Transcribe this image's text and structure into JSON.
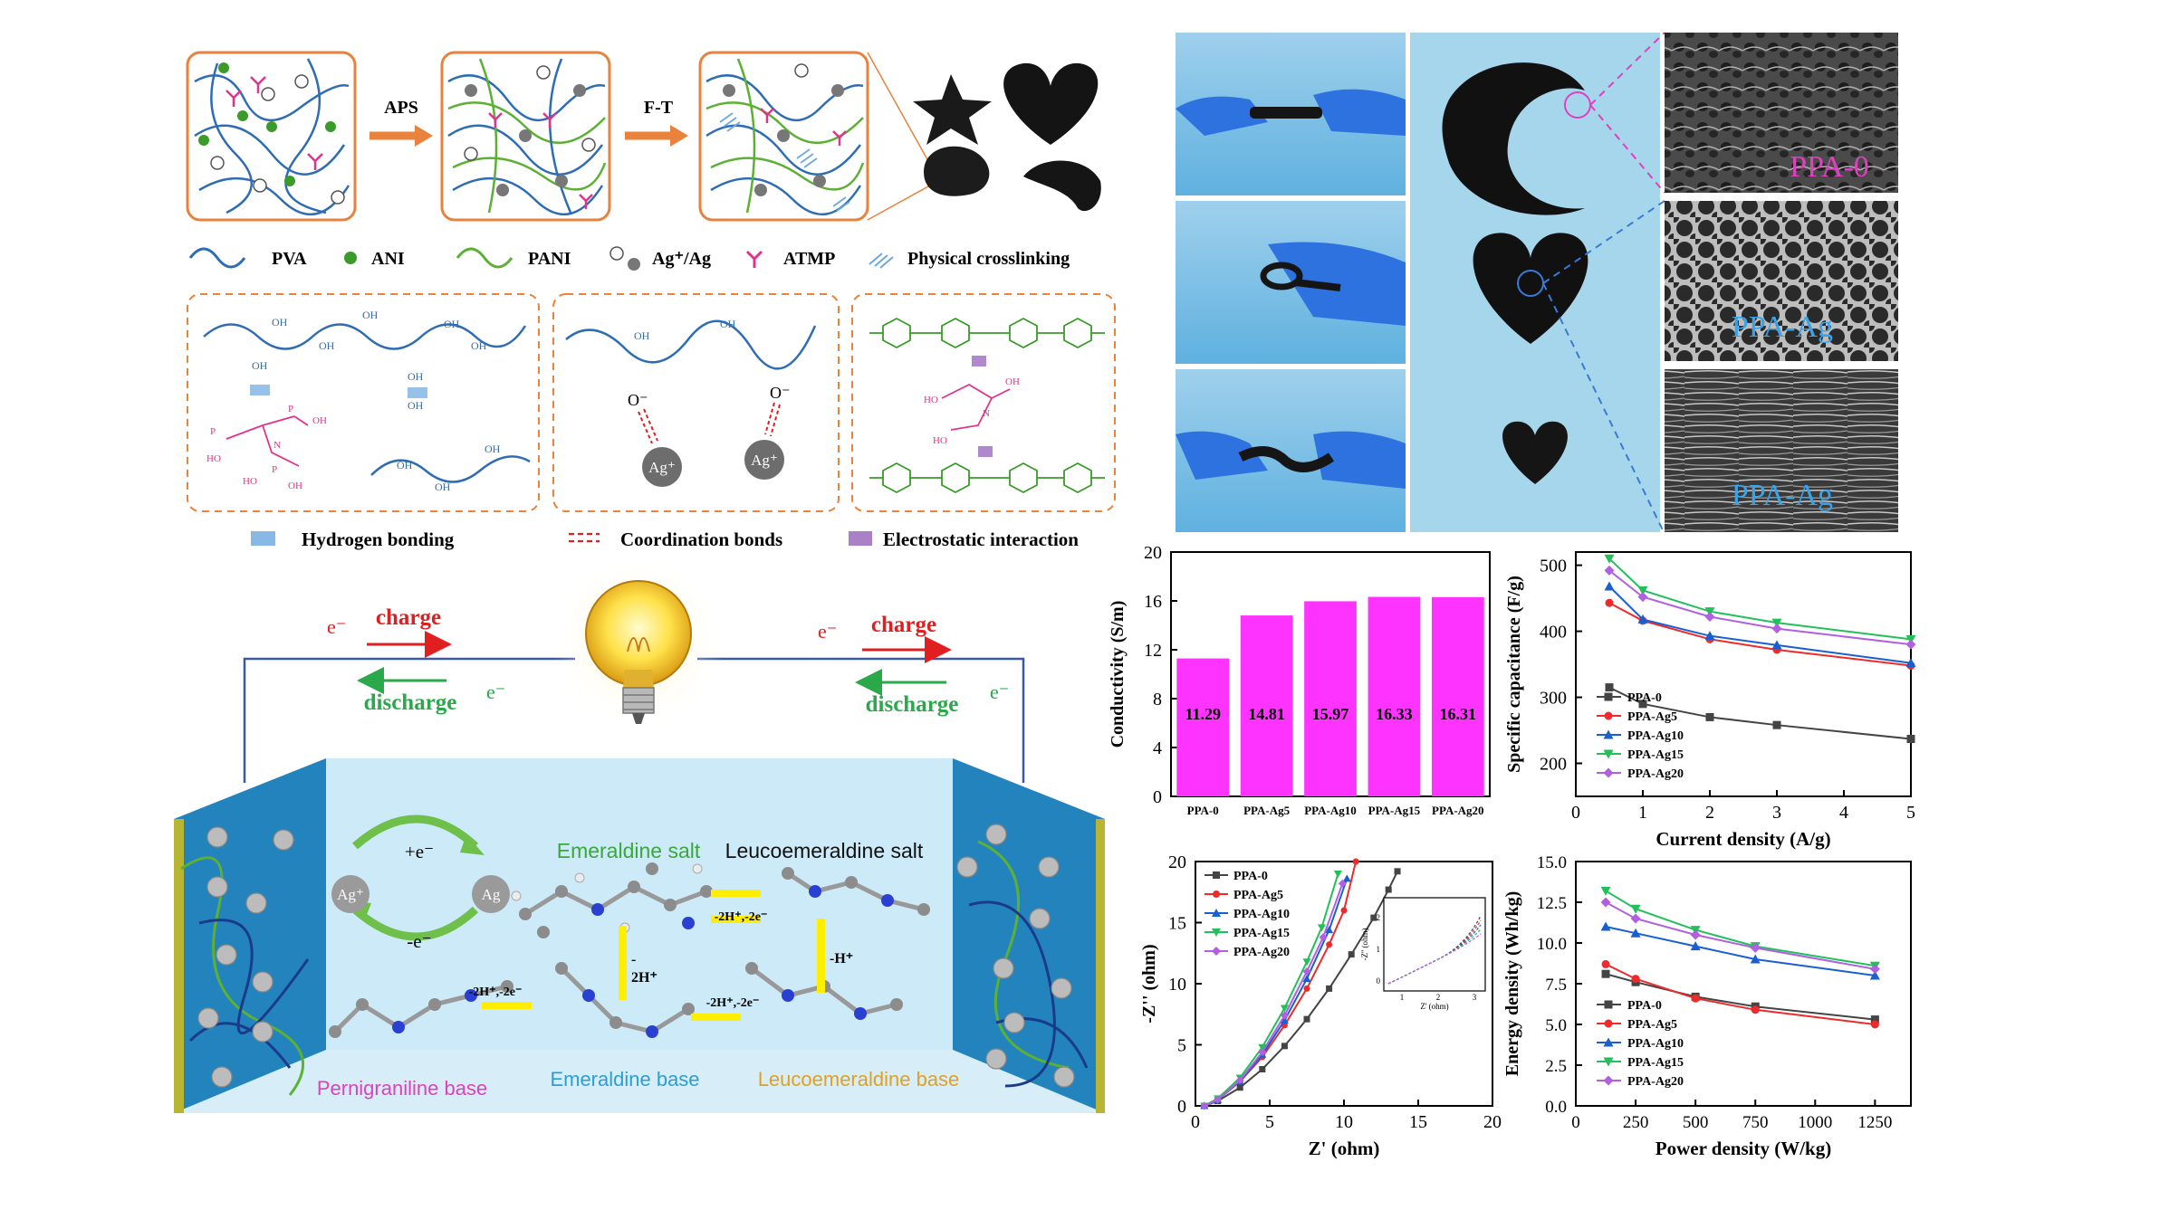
{
  "top_steps": {
    "aps": "APS",
    "ft": "F-T"
  },
  "legend1": {
    "pva": "PVA",
    "ani": "ANI",
    "pani": "PANI",
    "ag": "Ag⁺/Ag",
    "atmp": "ATMP",
    "phys": "Physical crosslinking"
  },
  "legend2": {
    "hbond": "Hydrogen bonding",
    "coord": "Coordination bonds",
    "electro": "Electrostatic interaction"
  },
  "mechanism": {
    "oh": "OH",
    "ominus": "O⁻",
    "ag_ion": "Ag⁺",
    "o_eq": "O",
    "p": "P",
    "n": "N",
    "ho": "HO"
  },
  "battery": {
    "e": "e⁻",
    "charge": "charge",
    "discharge": "discharge",
    "plus_e": "+e⁻",
    "minus_e": "-e⁻",
    "ag_plus": "Ag⁺",
    "ag": "Ag",
    "emeraldine_salt": "Emeraldine salt",
    "leucoemeraldine_salt": "Leucoemeraldine salt",
    "pernigraniline_base": "Pernigraniline base",
    "emeraldine_base": "Emeraldine base",
    "leucoemeraldine_base": "Leucoemeraldine base",
    "step1": "-2H⁺,-2e⁻",
    "step2": "-2H⁺,-2e⁻",
    "step3": "-2H⁺,-2e⁻",
    "step_2h": "2H⁺",
    "step_dash": "-",
    "step_h": "-H⁺"
  },
  "sem_labels": [
    "PPA-0",
    "PPA-Ag",
    "PPA-Ag"
  ],
  "colors": {
    "pva": "#2e6db4",
    "pani": "#5cb033",
    "ani": "#3a9a2a",
    "ag": "#777777",
    "atmp": "#e0348a",
    "orange": "#e8823c",
    "bar": "#ff33ff"
  },
  "chart_data": [
    {
      "type": "bar",
      "categories": [
        "PPA-0",
        "PPA-Ag5",
        "PPA-Ag10",
        "PPA-Ag15",
        "PPA-Ag20"
      ],
      "values": [
        11.29,
        14.81,
        15.97,
        16.33,
        16.31
      ],
      "value_labels": [
        "11.29",
        "14.81",
        "15.97",
        "16.33",
        "16.31"
      ],
      "xlabel": "",
      "ylabel": "Conductivity (S/m)",
      "ylim": [
        0,
        20
      ],
      "yticks": [
        "0",
        "4",
        "8",
        "12",
        "16",
        "20"
      ]
    },
    {
      "type": "line",
      "x": [
        0.5,
        1,
        2,
        3,
        5
      ],
      "series": [
        {
          "name": "PPA-0",
          "values": [
            315,
            290,
            270,
            258,
            237
          ]
        },
        {
          "name": "PPA-Ag5",
          "values": [
            443,
            416,
            388,
            372,
            348
          ]
        },
        {
          "name": "PPA-Ag10",
          "values": [
            468,
            418,
            393,
            379,
            352
          ]
        },
        {
          "name": "PPA-Ag15",
          "values": [
            510,
            462,
            430,
            413,
            388
          ]
        },
        {
          "name": "PPA-Ag20",
          "values": [
            492,
            452,
            422,
            404,
            380
          ]
        }
      ],
      "xlabel": "Current density (A/g)",
      "ylabel": "Specific capacitance (F/g)",
      "xlim": [
        0,
        5
      ],
      "ylim": [
        150,
        520
      ],
      "xticks": [
        "0",
        "1",
        "2",
        "3",
        "4",
        "5"
      ],
      "yticks": [
        "200",
        "300",
        "400",
        "500"
      ]
    },
    {
      "type": "line",
      "series": [
        {
          "name": "PPA-0",
          "x": [
            0.6,
            1.5,
            3,
            4.5,
            6,
            7.5,
            9,
            10.5,
            12,
            13,
            13.6
          ],
          "y": [
            0,
            0.4,
            1.5,
            3.0,
            4.9,
            7.1,
            9.6,
            12.4,
            15.4,
            17.7,
            19.2
          ]
        },
        {
          "name": "PPA-Ag5",
          "x": [
            0.6,
            1.5,
            3,
            4.5,
            6,
            7.5,
            9,
            10,
            10.8
          ],
          "y": [
            0,
            0.5,
            2.0,
            4.0,
            6.6,
            9.6,
            13.2,
            16.0,
            20
          ]
        },
        {
          "name": "PPA-Ag10",
          "x": [
            0.6,
            1.5,
            3,
            4.5,
            6,
            7.5,
            9,
            10.2
          ],
          "y": [
            0,
            0.5,
            2.0,
            4.2,
            7.0,
            10.4,
            14.4,
            18.6
          ]
        },
        {
          "name": "PPA-Ag15",
          "x": [
            0.6,
            1.5,
            3,
            4.5,
            6,
            7.5,
            8.5,
            9.6
          ],
          "y": [
            0,
            0.6,
            2.3,
            4.8,
            8.0,
            11.8,
            14.6,
            19.0
          ]
        },
        {
          "name": "PPA-Ag20",
          "x": [
            0.6,
            1.5,
            3,
            4.5,
            6,
            7.5,
            8.6,
            9.9
          ],
          "y": [
            0,
            0.5,
            2.1,
            4.4,
            7.4,
            11.0,
            13.8,
            18.2
          ]
        }
      ],
      "xlabel": "Z' (ohm)",
      "ylabel": "-Z'' (ohm)",
      "xlim": [
        0,
        20
      ],
      "ylim": [
        0,
        20
      ],
      "xticks": [
        "0",
        "5",
        "10",
        "15",
        "20"
      ],
      "yticks": [
        "0",
        "5",
        "10",
        "15",
        "20"
      ],
      "inset": {
        "xlabel": "Z' (ohm)",
        "ylabel": "-Z'' (ohm)",
        "xticks": [
          "1",
          "2",
          "3"
        ],
        "yticks": [
          "0",
          "1",
          "2"
        ]
      }
    },
    {
      "type": "line",
      "series": [
        {
          "name": "PPA-0",
          "x": [
            125,
            250,
            500,
            750,
            1250
          ],
          "y": [
            8.1,
            7.6,
            6.7,
            6.1,
            5.3
          ]
        },
        {
          "name": "PPA-Ag5",
          "x": [
            125,
            250,
            500,
            750,
            1250
          ],
          "y": [
            8.7,
            7.8,
            6.6,
            5.9,
            5.0
          ]
        },
        {
          "name": "PPA-Ag10",
          "x": [
            125,
            250,
            500,
            750,
            1250
          ],
          "y": [
            11.0,
            10.6,
            9.8,
            9.0,
            8.0
          ]
        },
        {
          "name": "PPA-Ag15",
          "x": [
            125,
            250,
            500,
            750,
            1250
          ],
          "y": [
            13.2,
            12.1,
            10.8,
            9.8,
            8.6
          ]
        },
        {
          "name": "PPA-Ag20",
          "x": [
            125,
            250,
            500,
            750,
            1250
          ],
          "y": [
            12.5,
            11.5,
            10.5,
            9.7,
            8.4
          ]
        }
      ],
      "xlabel": "Power density (W/kg)",
      "ylabel": "Energy density (Wh/kg)",
      "xlim": [
        0,
        1400
      ],
      "ylim": [
        0,
        15
      ],
      "xticks": [
        "0",
        "250",
        "500",
        "750",
        "1000",
        "1250"
      ],
      "yticks": [
        "0.0",
        "2.5",
        "5.0",
        "7.5",
        "10.0",
        "12.5",
        "15.0"
      ]
    }
  ]
}
